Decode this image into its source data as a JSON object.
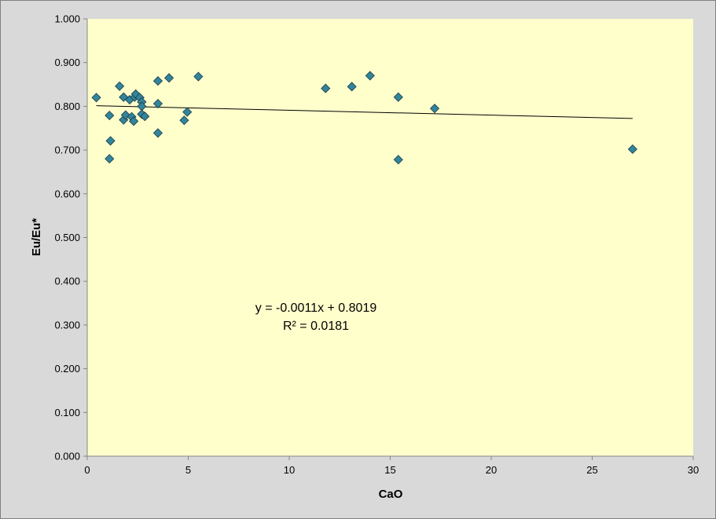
{
  "chart_data": {
    "type": "scatter",
    "title": "",
    "xlabel": "CaO",
    "ylabel": "Eu/Eu*",
    "xlim": [
      0,
      30
    ],
    "ylim": [
      0,
      1
    ],
    "x_ticks": [
      "0",
      "5",
      "10",
      "15",
      "20",
      "25",
      "30"
    ],
    "y_ticks": [
      "0.000",
      "0.100",
      "0.200",
      "0.300",
      "0.400",
      "0.500",
      "0.600",
      "0.700",
      "0.800",
      "0.900",
      "1.000"
    ],
    "grid": false,
    "legend": "none",
    "colors": {
      "plot_background": "#ffffcc",
      "chart_background": "#d9d9d9",
      "marker_fill": "#31859c",
      "marker_stroke": "#1f3a44",
      "trendline": "#000000"
    },
    "series": [
      {
        "marker": "diamond",
        "points": [
          {
            "x": 0.45,
            "y": 0.82
          },
          {
            "x": 1.1,
            "y": 0.779
          },
          {
            "x": 1.15,
            "y": 0.721
          },
          {
            "x": 1.1,
            "y": 0.68
          },
          {
            "x": 1.6,
            "y": 0.846
          },
          {
            "x": 1.8,
            "y": 0.821
          },
          {
            "x": 1.8,
            "y": 0.769
          },
          {
            "x": 1.9,
            "y": 0.78
          },
          {
            "x": 2.1,
            "y": 0.815
          },
          {
            "x": 2.2,
            "y": 0.776
          },
          {
            "x": 2.3,
            "y": 0.766
          },
          {
            "x": 2.35,
            "y": 0.821
          },
          {
            "x": 2.4,
            "y": 0.828
          },
          {
            "x": 2.6,
            "y": 0.82
          },
          {
            "x": 2.7,
            "y": 0.81
          },
          {
            "x": 2.7,
            "y": 0.8
          },
          {
            "x": 2.7,
            "y": 0.782
          },
          {
            "x": 2.85,
            "y": 0.777
          },
          {
            "x": 3.5,
            "y": 0.858
          },
          {
            "x": 3.5,
            "y": 0.806
          },
          {
            "x": 3.5,
            "y": 0.739
          },
          {
            "x": 4.05,
            "y": 0.865
          },
          {
            "x": 4.8,
            "y": 0.768
          },
          {
            "x": 4.95,
            "y": 0.787
          },
          {
            "x": 5.5,
            "y": 0.868
          },
          {
            "x": 11.8,
            "y": 0.841
          },
          {
            "x": 13.1,
            "y": 0.845
          },
          {
            "x": 14.0,
            "y": 0.87
          },
          {
            "x": 15.4,
            "y": 0.821
          },
          {
            "x": 15.4,
            "y": 0.678
          },
          {
            "x": 17.2,
            "y": 0.795
          },
          {
            "x": 27.0,
            "y": 0.702
          }
        ]
      }
    ],
    "trendline": {
      "type": "linear",
      "slope": -0.0011,
      "intercept": 0.8019,
      "x_range": [
        0.45,
        27.0
      ],
      "equation": "y = -0.0011x + 0.8019",
      "r_squared": "R² = 0.0181"
    }
  }
}
